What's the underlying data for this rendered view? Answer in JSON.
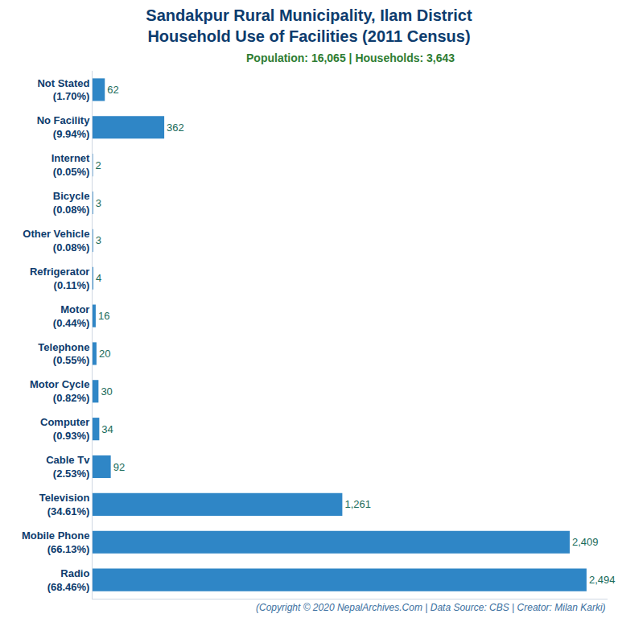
{
  "chart_data": {
    "type": "bar",
    "orientation": "horizontal",
    "title": "Sandakpur Rural Municipality, Ilam District\nHousehold Use of Facilities (2011 Census)",
    "subtitle": "Population: 16,065 | Households: 3,643",
    "note": "(Copyright © 2020 NepalArchives.Com | Data Source: CBS | Creator: Milan Karki)",
    "categories": [
      "Not Stated\n(1.70%)",
      "No Facility\n(9.94%)",
      "Internet\n(0.05%)",
      "Bicycle\n(0.08%)",
      "Other Vehicle\n(0.08%)",
      "Refrigerator\n(0.11%)",
      "Motor\n(0.44%)",
      "Telephone\n(0.55%)",
      "Motor Cycle\n(0.82%)",
      "Computer\n(0.93%)",
      "Cable Tv\n(2.53%)",
      "Television\n(34.61%)",
      "Mobile Phone\n(66.13%)",
      "Radio\n(68.46%)"
    ],
    "values": [
      62,
      362,
      2,
      3,
      3,
      4,
      16,
      20,
      30,
      34,
      92,
      1261,
      2409,
      2494
    ],
    "value_labels": [
      "62",
      "362",
      "2",
      "3",
      "3",
      "4",
      "16",
      "20",
      "30",
      "34",
      "92",
      "1,261",
      "2,409",
      "2,494"
    ],
    "data_labels": true,
    "color": "#2f86c6",
    "xlim": [
      0,
      2600
    ],
    "grid": false,
    "tick_labels": "y"
  }
}
